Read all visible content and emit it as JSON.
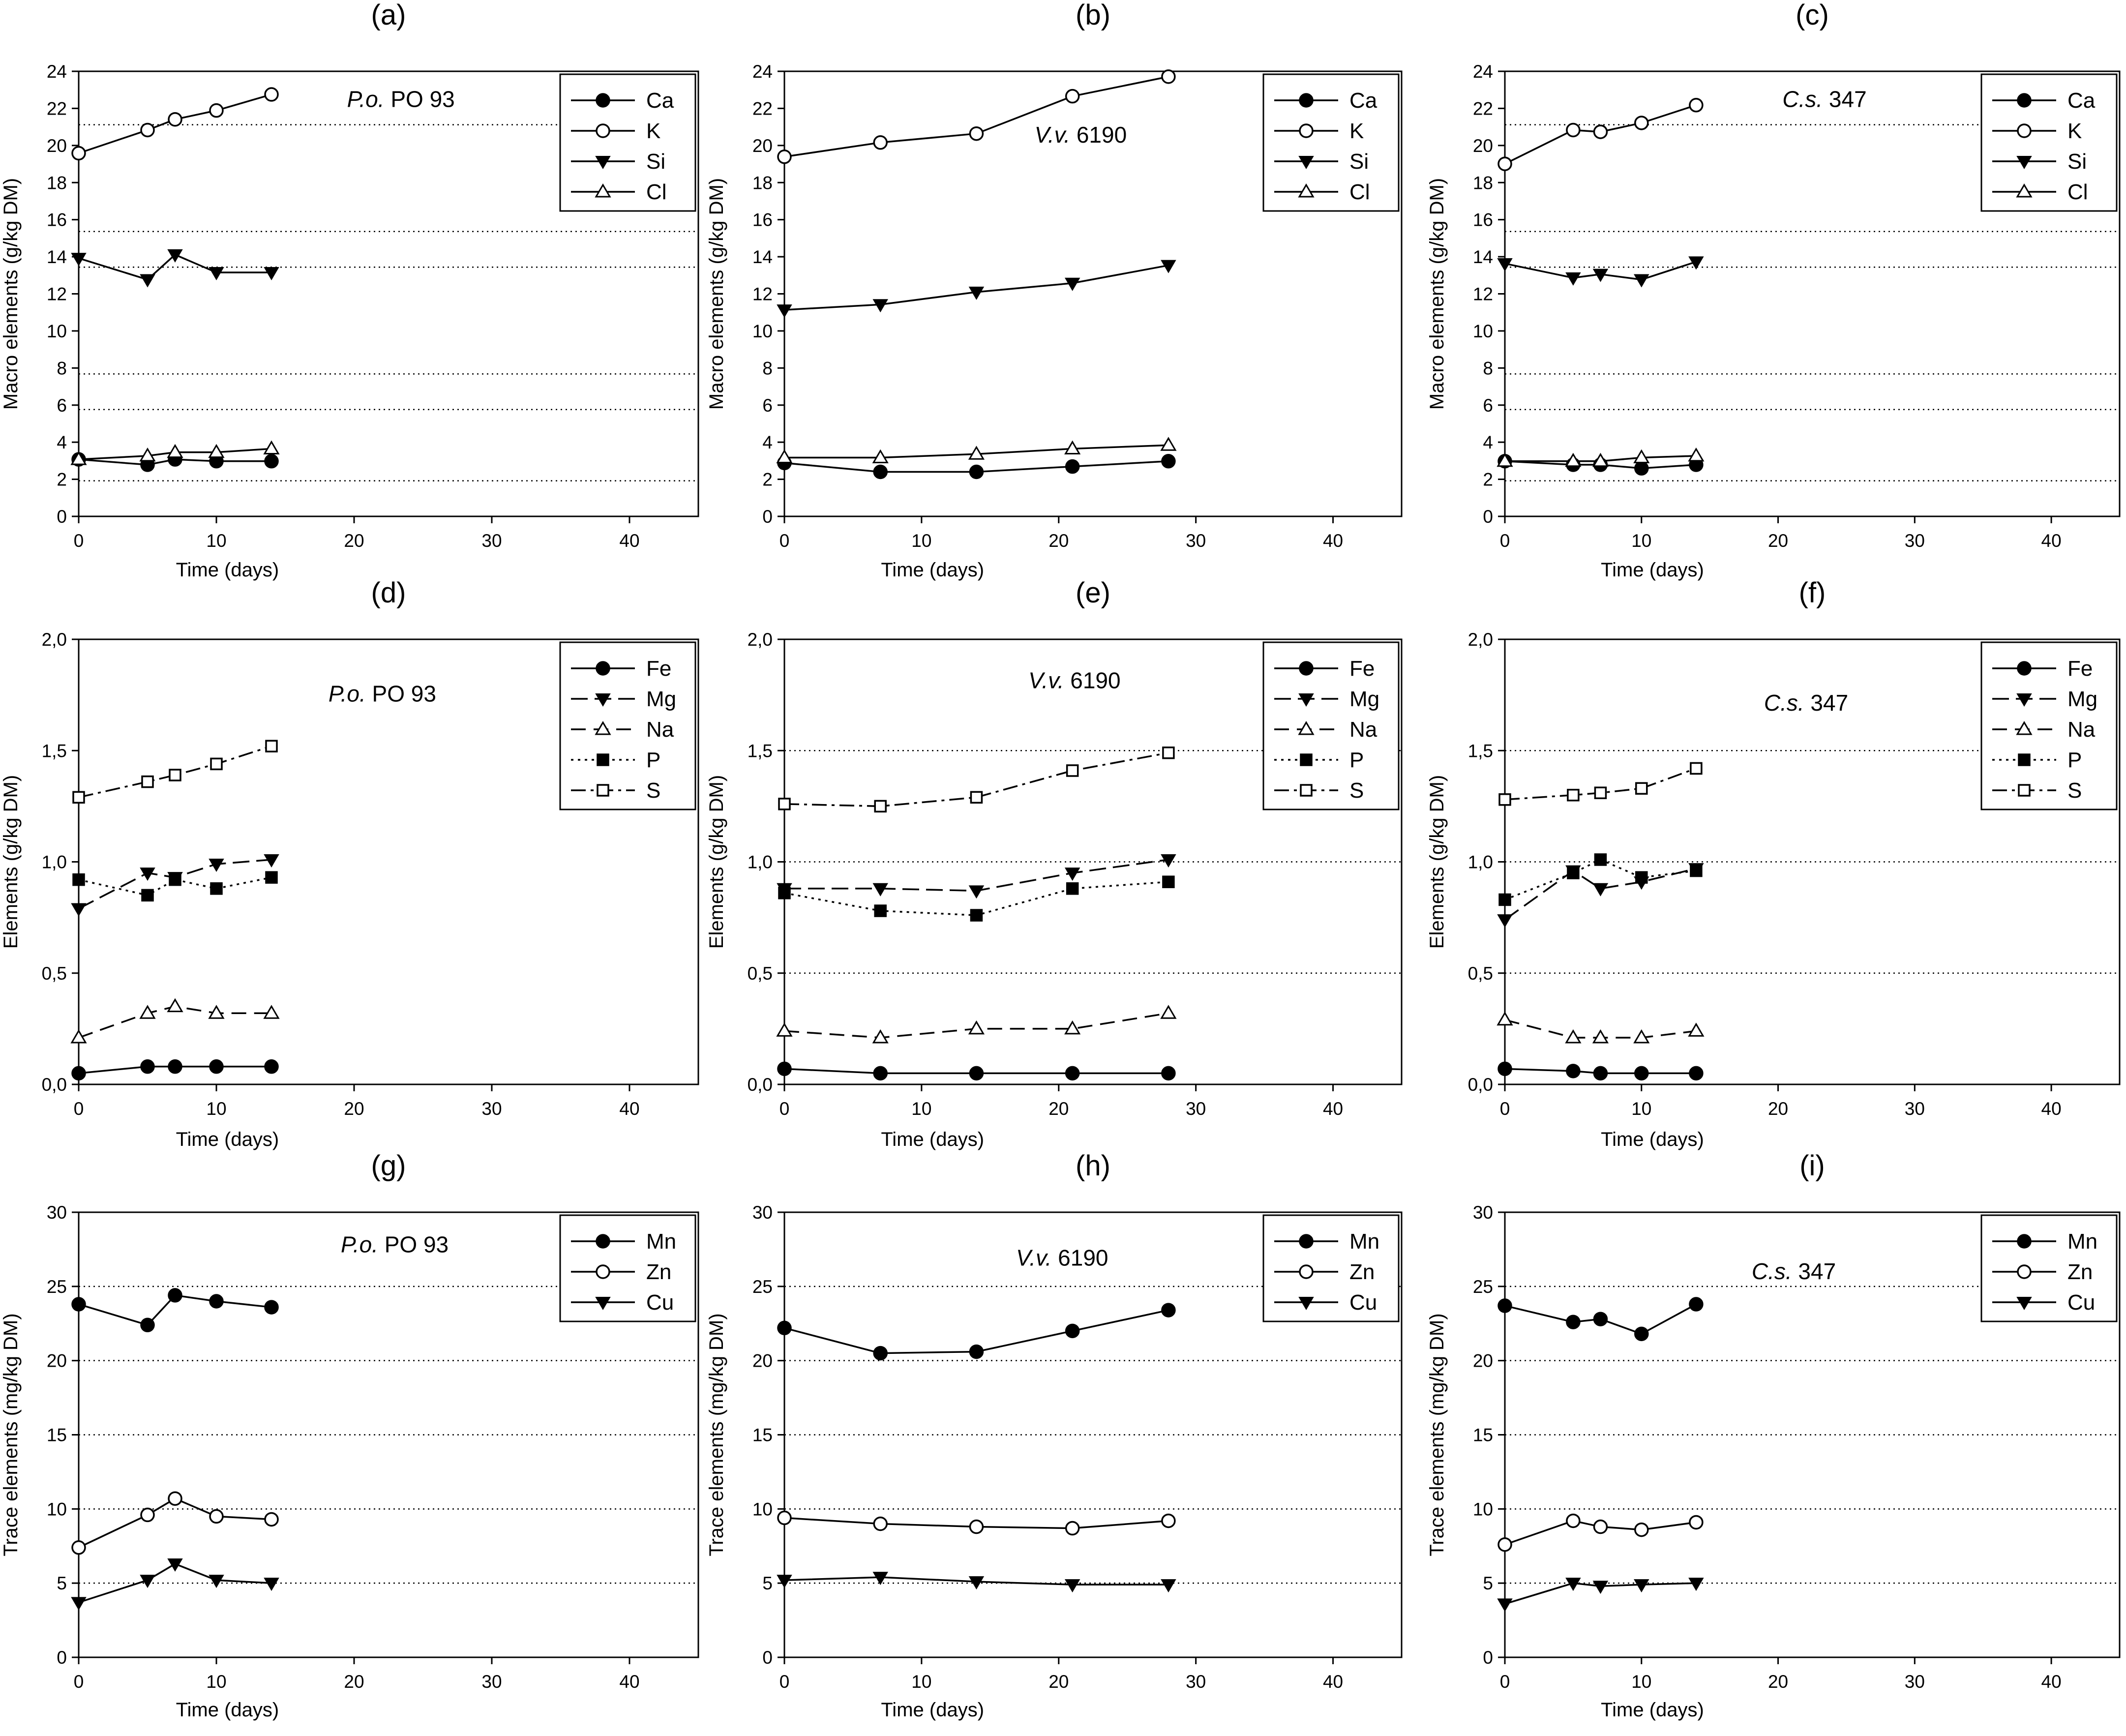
{
  "chart_data": [
    {
      "type": "line",
      "panel": "(a)",
      "annotation": "P.o. PO 93",
      "xlabel": "Time (days)",
      "ylabel": "Macro elements (g/kg DM)",
      "xlim": [
        0,
        45
      ],
      "ylim": [
        0,
        25
      ],
      "xticks": [
        "0",
        "10",
        "20",
        "30",
        "40"
      ],
      "yticks": [
        "0",
        "2",
        "4",
        "6",
        "8",
        "10",
        "12",
        "14",
        "16",
        "18",
        "20",
        "22",
        "24"
      ],
      "grid": "dotted at y = 2, 6, 8, 14, 16, 22",
      "legend": "top-right",
      "series": [
        {
          "name": "Ca",
          "marker": "filled-circle",
          "x": [
            0,
            5,
            7,
            10,
            14
          ],
          "y": [
            3.2,
            2.9,
            3.2,
            3.1,
            3.1
          ]
        },
        {
          "name": "K",
          "marker": "open-circle",
          "x": [
            0,
            5,
            7,
            10,
            14
          ],
          "y": [
            20.4,
            21.7,
            22.3,
            22.8,
            23.7
          ]
        },
        {
          "name": "Si",
          "marker": "filled-triangle-down",
          "x": [
            0,
            5,
            7,
            10,
            14
          ],
          "y": [
            14.5,
            13.3,
            14.7,
            13.7,
            13.7
          ]
        },
        {
          "name": "Cl",
          "marker": "open-triangle-up",
          "x": [
            0,
            5,
            7,
            10,
            14
          ],
          "y": [
            3.2,
            3.4,
            3.6,
            3.6,
            3.8
          ]
        }
      ]
    },
    {
      "type": "line",
      "panel": "(b)",
      "annotation": "V.v. 6190",
      "xlabel": "Time (days)",
      "ylabel": "Macro elements (g/kg DM)",
      "xlim": [
        0,
        45
      ],
      "ylim": [
        0,
        25
      ],
      "xticks": [
        "0",
        "10",
        "20",
        "30",
        "40"
      ],
      "yticks": [
        "0",
        "2",
        "4",
        "6",
        "8",
        "10",
        "12",
        "14",
        "16",
        "18",
        "20",
        "22",
        "24"
      ],
      "grid": "none",
      "legend": "top-right",
      "series": [
        {
          "name": "Ca",
          "marker": "filled-circle",
          "x": [
            0,
            7,
            14,
            21,
            28
          ],
          "y": [
            3.0,
            2.5,
            2.5,
            2.8,
            3.1
          ]
        },
        {
          "name": "K",
          "marker": "open-circle",
          "x": [
            0,
            7,
            14,
            21,
            28
          ],
          "y": [
            20.2,
            21.0,
            21.5,
            23.6,
            24.7
          ]
        },
        {
          "name": "Si",
          "marker": "filled-triangle-down",
          "x": [
            0,
            7,
            14,
            21,
            28
          ],
          "y": [
            11.6,
            11.9,
            12.6,
            13.1,
            14.1
          ]
        },
        {
          "name": "Cl",
          "marker": "open-triangle-up",
          "x": [
            0,
            7,
            14,
            21,
            28
          ],
          "y": [
            3.3,
            3.3,
            3.5,
            3.8,
            4.0
          ]
        }
      ]
    },
    {
      "type": "line",
      "panel": "(c)",
      "annotation": "C.s. 347",
      "xlabel": "Time (days)",
      "ylabel": "Macro elements (g/kg DM)",
      "xlim": [
        0,
        45
      ],
      "ylim": [
        0,
        25
      ],
      "xticks": [
        "0",
        "10",
        "20",
        "30",
        "40"
      ],
      "yticks": [
        "0",
        "2",
        "4",
        "6",
        "8",
        "10",
        "12",
        "14",
        "16",
        "18",
        "20",
        "22",
        "24"
      ],
      "grid": "dotted at y = 2, 6, 8, 14, 16, 22",
      "legend": "top-right",
      "series": [
        {
          "name": "Ca",
          "marker": "filled-circle",
          "x": [
            0,
            5,
            7,
            10,
            14
          ],
          "y": [
            3.1,
            2.9,
            2.9,
            2.7,
            2.9
          ]
        },
        {
          "name": "K",
          "marker": "open-circle",
          "x": [
            0,
            5,
            7,
            10,
            14
          ],
          "y": [
            19.8,
            21.7,
            21.6,
            22.1,
            23.1
          ]
        },
        {
          "name": "Si",
          "marker": "filled-triangle-down",
          "x": [
            0,
            5,
            7,
            10,
            14
          ],
          "y": [
            14.2,
            13.4,
            13.6,
            13.3,
            14.3
          ]
        },
        {
          "name": "Cl",
          "marker": "open-triangle-up",
          "x": [
            0,
            5,
            7,
            10,
            14
          ],
          "y": [
            3.1,
            3.1,
            3.1,
            3.3,
            3.4
          ]
        }
      ]
    },
    {
      "type": "line",
      "panel": "(d)",
      "annotation": "P.o. PO 93",
      "xlabel": "Time (days)",
      "ylabel": "Elements (g/kg DM)",
      "xlim": [
        0,
        45
      ],
      "ylim": [
        0,
        2.0
      ],
      "xticks": [
        "0",
        "10",
        "20",
        "30",
        "40"
      ],
      "yticks": [
        "0,0",
        "0,5",
        "1,0",
        "1,5",
        "2,0"
      ],
      "grid": "none",
      "legend": "top-right",
      "series": [
        {
          "name": "Fe",
          "marker": "filled-circle",
          "x": [
            0,
            5,
            7,
            10,
            14
          ],
          "y": [
            0.05,
            0.08,
            0.08,
            0.08,
            0.08
          ]
        },
        {
          "name": "Mg",
          "marker": "filled-triangle-down",
          "x": [
            0,
            5,
            7,
            10,
            14
          ],
          "y": [
            0.79,
            0.95,
            0.93,
            0.99,
            1.01
          ]
        },
        {
          "name": "Na",
          "marker": "open-triangle-up",
          "x": [
            0,
            5,
            7,
            10,
            14
          ],
          "y": [
            0.21,
            0.32,
            0.35,
            0.32,
            0.32
          ]
        },
        {
          "name": "P",
          "marker": "filled-square",
          "x": [
            0,
            5,
            7,
            10,
            14
          ],
          "y": [
            0.92,
            0.85,
            0.92,
            0.88,
            0.93
          ]
        },
        {
          "name": "S",
          "marker": "open-square",
          "x": [
            0,
            5,
            7,
            10,
            14
          ],
          "y": [
            1.29,
            1.36,
            1.39,
            1.44,
            1.52
          ]
        }
      ]
    },
    {
      "type": "line",
      "panel": "(e)",
      "annotation": "V.v. 6190",
      "xlabel": "Time (days)",
      "ylabel": "Elements (g/kg DM)",
      "xlim": [
        0,
        45
      ],
      "ylim": [
        0,
        2.0
      ],
      "xticks": [
        "0",
        "10",
        "20",
        "30",
        "40"
      ],
      "yticks": [
        "0,0",
        "0,5",
        "1,0",
        "1,5",
        "2,0"
      ],
      "grid": "dotted at y = 0.5, 1.0, 1.5",
      "legend": "top-right",
      "series": [
        {
          "name": "Fe",
          "marker": "filled-circle",
          "x": [
            0,
            7,
            14,
            21,
            28
          ],
          "y": [
            0.07,
            0.05,
            0.05,
            0.05,
            0.05
          ]
        },
        {
          "name": "Mg",
          "marker": "filled-triangle-down",
          "x": [
            0,
            7,
            14,
            21,
            28
          ],
          "y": [
            0.88,
            0.88,
            0.87,
            0.95,
            1.01
          ]
        },
        {
          "name": "Na",
          "marker": "open-triangle-up",
          "x": [
            0,
            7,
            14,
            21,
            28
          ],
          "y": [
            0.24,
            0.21,
            0.25,
            0.25,
            0.32
          ]
        },
        {
          "name": "P",
          "marker": "filled-square",
          "x": [
            0,
            7,
            14,
            21,
            28
          ],
          "y": [
            0.86,
            0.78,
            0.76,
            0.88,
            0.91
          ]
        },
        {
          "name": "S",
          "marker": "open-square",
          "x": [
            0,
            7,
            14,
            21,
            28
          ],
          "y": [
            1.26,
            1.25,
            1.29,
            1.41,
            1.49
          ]
        }
      ]
    },
    {
      "type": "line",
      "panel": "(f)",
      "annotation": "C.s. 347",
      "xlabel": "Time (days)",
      "ylabel": "Elements (g/kg DM)",
      "xlim": [
        0,
        45
      ],
      "ylim": [
        0,
        2.0
      ],
      "xticks": [
        "0",
        "10",
        "20",
        "30",
        "40"
      ],
      "yticks": [
        "0,0",
        "0,5",
        "1,0",
        "1,5",
        "2,0"
      ],
      "grid": "dotted at y = 0.5, 1.0, 1.5",
      "legend": "top-right",
      "series": [
        {
          "name": "Fe",
          "marker": "filled-circle",
          "x": [
            0,
            5,
            7,
            10,
            14
          ],
          "y": [
            0.07,
            0.06,
            0.05,
            0.05,
            0.05
          ]
        },
        {
          "name": "Mg",
          "marker": "filled-triangle-down",
          "x": [
            0,
            5,
            7,
            10,
            14
          ],
          "y": [
            0.74,
            0.96,
            0.88,
            0.91,
            0.97
          ]
        },
        {
          "name": "Na",
          "marker": "open-triangle-up",
          "x": [
            0,
            5,
            7,
            10,
            14
          ],
          "y": [
            0.29,
            0.21,
            0.21,
            0.21,
            0.24
          ]
        },
        {
          "name": "P",
          "marker": "filled-square",
          "x": [
            0,
            5,
            7,
            10,
            14
          ],
          "y": [
            0.83,
            0.95,
            1.01,
            0.93,
            0.96
          ]
        },
        {
          "name": "S",
          "marker": "open-square",
          "x": [
            0,
            5,
            7,
            10,
            14
          ],
          "y": [
            1.28,
            1.3,
            1.31,
            1.33,
            1.42
          ]
        }
      ]
    },
    {
      "type": "line",
      "panel": "(g)",
      "annotation": "P.o. PO 93",
      "xlabel": "Time (days)",
      "ylabel": "Trace elements (mg/kg DM)",
      "xlim": [
        0,
        45
      ],
      "ylim": [
        0,
        30
      ],
      "xticks": [
        "0",
        "10",
        "20",
        "30",
        "40"
      ],
      "yticks": [
        "0",
        "5",
        "10",
        "15",
        "20",
        "25",
        "30"
      ],
      "grid": "dotted at y = 5, 10, 15, 20, 25",
      "legend": "top-right",
      "series": [
        {
          "name": "Mn",
          "marker": "filled-circle",
          "x": [
            0,
            5,
            7,
            10,
            14
          ],
          "y": [
            23.8,
            22.4,
            24.4,
            24.0,
            23.6
          ]
        },
        {
          "name": "Zn",
          "marker": "open-circle",
          "x": [
            0,
            5,
            7,
            10,
            14
          ],
          "y": [
            7.4,
            9.6,
            10.7,
            9.5,
            9.3
          ]
        },
        {
          "name": "Cu",
          "marker": "filled-triangle-down",
          "x": [
            0,
            5,
            7,
            10,
            14
          ],
          "y": [
            3.7,
            5.2,
            6.3,
            5.2,
            5.0
          ]
        }
      ]
    },
    {
      "type": "line",
      "panel": "(h)",
      "annotation": "V.v. 6190",
      "xlabel": "Time (days)",
      "ylabel": "Trace elements (mg/kg DM)",
      "xlim": [
        0,
        45
      ],
      "ylim": [
        0,
        30
      ],
      "xticks": [
        "0",
        "10",
        "20",
        "30",
        "40"
      ],
      "yticks": [
        "0",
        "5",
        "10",
        "15",
        "20",
        "25",
        "30"
      ],
      "grid": "dotted at y = 5, 10, 15, 20, 25",
      "legend": "top-right",
      "series": [
        {
          "name": "Mn",
          "marker": "filled-circle",
          "x": [
            0,
            7,
            14,
            21,
            28
          ],
          "y": [
            22.2,
            20.5,
            20.6,
            22.0,
            23.4
          ]
        },
        {
          "name": "Zn",
          "marker": "open-circle",
          "x": [
            0,
            7,
            14,
            21,
            28
          ],
          "y": [
            9.4,
            9.0,
            8.8,
            8.7,
            9.2
          ]
        },
        {
          "name": "Cu",
          "marker": "filled-triangle-down",
          "x": [
            0,
            7,
            14,
            21,
            28
          ],
          "y": [
            5.2,
            5.4,
            5.1,
            4.9,
            4.9
          ]
        }
      ]
    },
    {
      "type": "line",
      "panel": "(i)",
      "annotation": "C.s. 347",
      "xlabel": "Time (days)",
      "ylabel": "Trace elements (mg/kg DM)",
      "xlim": [
        0,
        45
      ],
      "ylim": [
        0,
        30
      ],
      "xticks": [
        "0",
        "10",
        "20",
        "30",
        "40"
      ],
      "yticks": [
        "0",
        "5",
        "10",
        "15",
        "20",
        "25",
        "30"
      ],
      "grid": "dotted at y = 5, 10, 15, 20, 25",
      "legend": "top-right",
      "series": [
        {
          "name": "Mn",
          "marker": "filled-circle",
          "x": [
            0,
            5,
            7,
            10,
            14
          ],
          "y": [
            23.7,
            22.6,
            22.8,
            21.8,
            23.8
          ]
        },
        {
          "name": "Zn",
          "marker": "open-circle",
          "x": [
            0,
            5,
            7,
            10,
            14
          ],
          "y": [
            7.6,
            9.2,
            8.8,
            8.6,
            9.1
          ]
        },
        {
          "name": "Cu",
          "marker": "filled-triangle-down",
          "x": [
            0,
            5,
            7,
            10,
            14
          ],
          "y": [
            3.6,
            5.0,
            4.8,
            4.9,
            5.0
          ]
        }
      ]
    }
  ]
}
